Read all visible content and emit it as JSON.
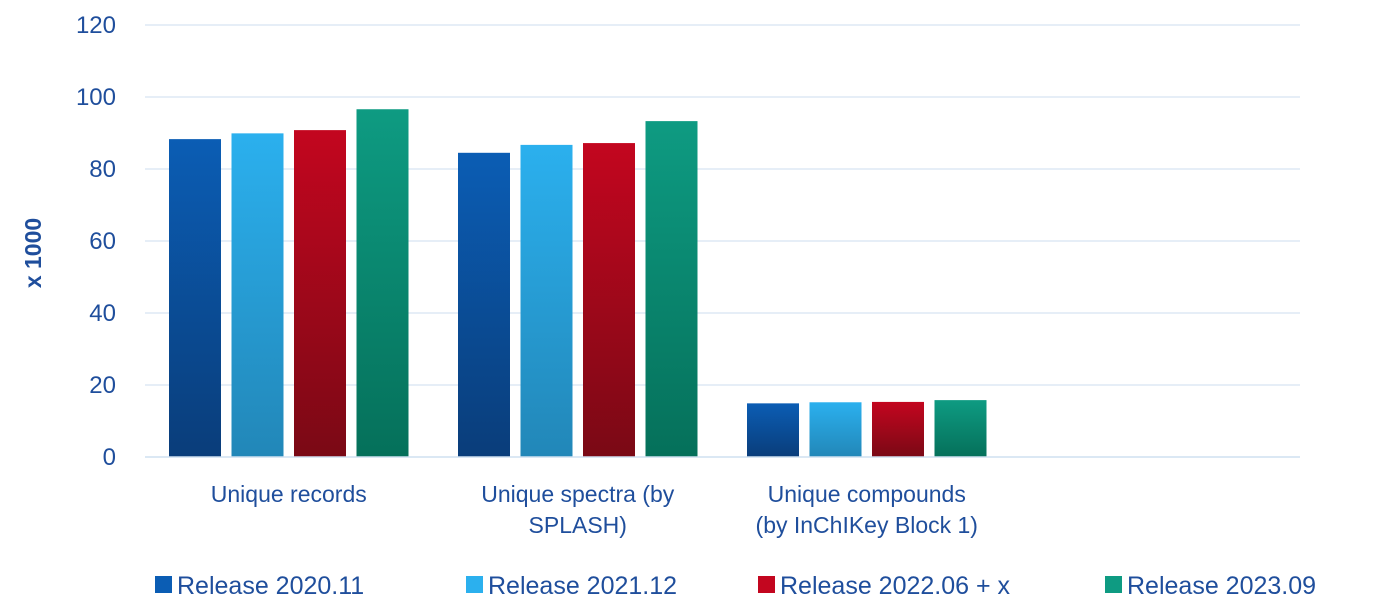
{
  "chart_data": {
    "type": "bar",
    "ylabel": "x 1000",
    "ylim": [
      0,
      120
    ],
    "yticks": [
      0,
      20,
      40,
      60,
      80,
      100,
      120
    ],
    "grid": true,
    "legend_position": "bottom",
    "categories": [
      [
        "Unique records"
      ],
      [
        "Unique spectra (by",
        "SPLASH)"
      ],
      [
        "Unique compounds",
        "(by InChIKey Block 1)"
      ]
    ],
    "series": [
      {
        "name": "Release 2020.11",
        "values": [
          88.3,
          84.5,
          14.9
        ],
        "color_top": "#0b5db4",
        "color_bottom": "#0a3d7a"
      },
      {
        "name": "Release 2021.12",
        "values": [
          89.9,
          86.7,
          15.2
        ],
        "color_top": "#2bb0ee",
        "color_bottom": "#2287b8"
      },
      {
        "name": "Release 2022.06 + x",
        "values": [
          90.8,
          87.2,
          15.3
        ],
        "color_top": "#c3061f",
        "color_bottom": "#7a0915"
      },
      {
        "name": "Release 2023.09",
        "values": [
          96.6,
          93.3,
          15.8
        ],
        "color_top": "#0e9b82",
        "color_bottom": "#05705a"
      }
    ]
  }
}
